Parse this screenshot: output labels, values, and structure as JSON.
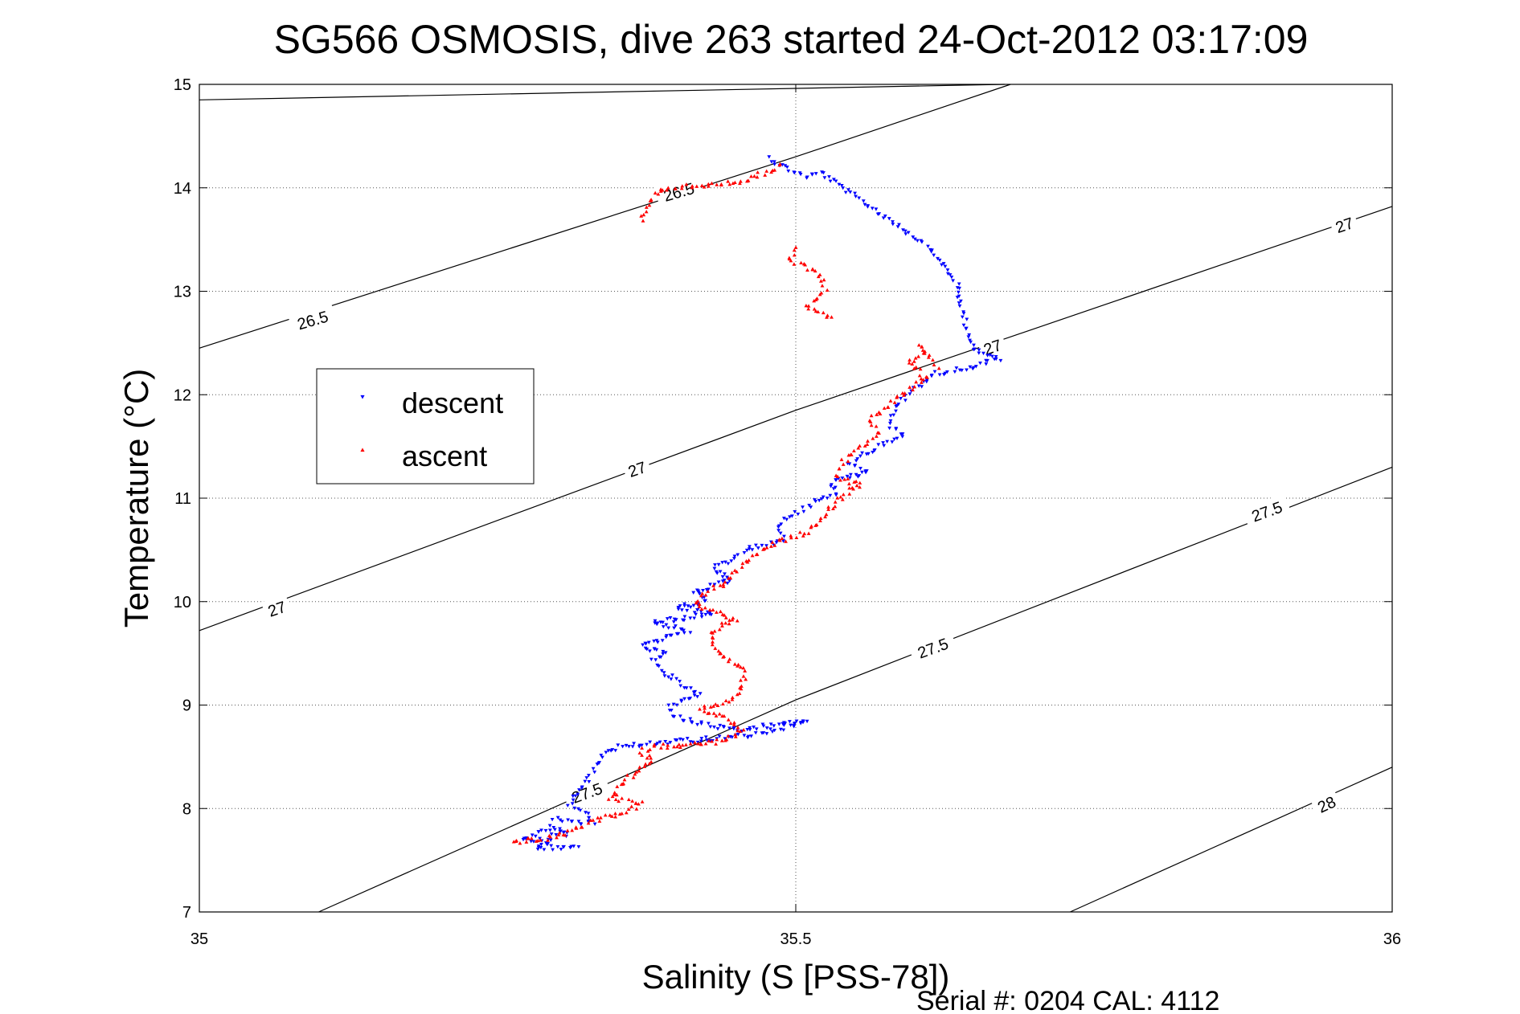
{
  "chart_data": {
    "type": "scatter",
    "title": "SG566 OSMOSIS, dive 263 started 24-Oct-2012 03:17:09",
    "xlabel": "Salinity (S [PSS-78])",
    "ylabel": "Temperature (°C)",
    "xlim": [
      35,
      36
    ],
    "ylim": [
      7,
      15
    ],
    "xticks": [
      "35",
      "35.5",
      "36"
    ],
    "yticks": [
      "7",
      "8",
      "9",
      "10",
      "11",
      "12",
      "13",
      "14",
      "15"
    ],
    "grid": "dotted",
    "legend_position": "upper-left",
    "footer": "Serial #: 0204  CAL: 4112",
    "contours": [
      {
        "level": "26.5",
        "points": [
          [
            35,
            14.85
          ],
          [
            35.675,
            15
          ]
        ]
      },
      {
        "level": "26.5",
        "points": [
          [
            35,
            12.45
          ],
          [
            35.5,
            14.3
          ],
          [
            35.68,
            15
          ]
        ]
      },
      {
        "level": "27",
        "points": [
          [
            35,
            9.72
          ],
          [
            35.5,
            11.85
          ],
          [
            36,
            13.82
          ]
        ]
      },
      {
        "level": "27.5",
        "points": [
          [
            35.1,
            7.0
          ],
          [
            35.5,
            9.05
          ],
          [
            36,
            11.3
          ]
        ]
      },
      {
        "level": "28",
        "points": [
          [
            35.73,
            7.0
          ],
          [
            36,
            8.4
          ]
        ]
      }
    ],
    "contour_labels": [
      {
        "text": "26.5",
        "x": 35.402,
        "y": 13.96,
        "angle": -16
      },
      {
        "text": "26.5",
        "x": 35.095,
        "y": 12.72,
        "angle": -16
      },
      {
        "text": "27",
        "x": 35.96,
        "y": 13.64,
        "angle": -19
      },
      {
        "text": "27",
        "x": 35.665,
        "y": 12.46,
        "angle": -19
      },
      {
        "text": "27",
        "x": 35.367,
        "y": 11.28,
        "angle": -19
      },
      {
        "text": "27",
        "x": 35.065,
        "y": 9.93,
        "angle": -19
      },
      {
        "text": "27.5",
        "x": 35.895,
        "y": 10.87,
        "angle": -20
      },
      {
        "text": "27.5",
        "x": 35.615,
        "y": 9.55,
        "angle": -20
      },
      {
        "text": "27.5",
        "x": 35.325,
        "y": 8.15,
        "angle": -20
      },
      {
        "text": "28",
        "x": 35.945,
        "y": 8.04,
        "angle": -25
      }
    ],
    "series": [
      {
        "name": "descent",
        "color": "#0000ff",
        "marker": "triangle-down",
        "path": [
          [
            35.477,
            14.29
          ],
          [
            35.49,
            14.2
          ],
          [
            35.51,
            14.1
          ],
          [
            35.52,
            14.15
          ],
          [
            35.58,
            13.68
          ],
          [
            35.61,
            13.45
          ],
          [
            35.62,
            13.3
          ],
          [
            35.635,
            13.08
          ],
          [
            35.64,
            12.78
          ],
          [
            35.65,
            12.42
          ],
          [
            35.67,
            12.35
          ],
          [
            35.64,
            12.25
          ],
          [
            35.615,
            12.2
          ],
          [
            35.6,
            12.05
          ],
          [
            35.585,
            11.9
          ],
          [
            35.578,
            11.72
          ],
          [
            35.59,
            11.62
          ],
          [
            35.575,
            11.52
          ],
          [
            35.555,
            11.42
          ],
          [
            35.545,
            11.32
          ],
          [
            35.56,
            11.25
          ],
          [
            35.53,
            11.15
          ],
          [
            35.535,
            11.05
          ],
          [
            35.515,
            10.95
          ],
          [
            35.5,
            10.85
          ],
          [
            35.485,
            10.75
          ],
          [
            35.49,
            10.6
          ],
          [
            35.46,
            10.5
          ],
          [
            35.445,
            10.4
          ],
          [
            35.43,
            10.32
          ],
          [
            35.445,
            10.2
          ],
          [
            35.415,
            10.1
          ],
          [
            35.425,
            10.0
          ],
          [
            35.4,
            9.95
          ],
          [
            35.43,
            9.88
          ],
          [
            35.38,
            9.8
          ],
          [
            35.41,
            9.72
          ],
          [
            35.39,
            9.65
          ],
          [
            35.37,
            9.57
          ],
          [
            35.39,
            9.5
          ],
          [
            35.38,
            9.42
          ],
          [
            35.39,
            9.3
          ],
          [
            35.405,
            9.2
          ],
          [
            35.42,
            9.1
          ],
          [
            35.395,
            9.0
          ],
          [
            35.4,
            8.88
          ],
          [
            35.42,
            8.82
          ],
          [
            35.45,
            8.75
          ],
          [
            35.49,
            8.82
          ],
          [
            35.5,
            8.82
          ],
          [
            35.51,
            8.85
          ],
          [
            35.47,
            8.72
          ],
          [
            35.44,
            8.68
          ],
          [
            35.4,
            8.65
          ],
          [
            35.37,
            8.62
          ],
          [
            35.355,
            8.6
          ],
          [
            35.34,
            8.55
          ],
          [
            35.33,
            8.35
          ],
          [
            35.31,
            8.05
          ],
          [
            35.325,
            7.95
          ],
          [
            35.33,
            7.85
          ],
          [
            35.3,
            7.9
          ],
          [
            35.295,
            7.85
          ],
          [
            35.31,
            7.75
          ],
          [
            35.285,
            7.78
          ],
          [
            35.27,
            7.7
          ],
          [
            35.295,
            7.68
          ],
          [
            35.282,
            7.62
          ],
          [
            35.31,
            7.62
          ],
          [
            35.318,
            7.63
          ]
        ]
      },
      {
        "name": "ascent",
        "color": "#ff0000",
        "marker": "triangle-up",
        "path": [
          [
            35.262,
            7.68
          ],
          [
            35.288,
            7.7
          ],
          [
            35.305,
            7.75
          ],
          [
            35.335,
            7.9
          ],
          [
            35.36,
            7.98
          ],
          [
            35.37,
            8.05
          ],
          [
            35.345,
            8.1
          ],
          [
            35.36,
            8.3
          ],
          [
            35.38,
            8.45
          ],
          [
            35.37,
            8.55
          ],
          [
            35.38,
            8.6
          ],
          [
            35.42,
            8.62
          ],
          [
            35.44,
            8.66
          ],
          [
            35.455,
            8.74
          ],
          [
            35.44,
            8.87
          ],
          [
            35.42,
            8.96
          ],
          [
            35.448,
            9.06
          ],
          [
            35.455,
            9.2
          ],
          [
            35.458,
            9.35
          ],
          [
            35.44,
            9.45
          ],
          [
            35.43,
            9.58
          ],
          [
            35.43,
            9.72
          ],
          [
            35.45,
            9.82
          ],
          [
            35.43,
            9.9
          ],
          [
            35.415,
            9.98
          ],
          [
            35.425,
            10.08
          ],
          [
            35.44,
            10.18
          ],
          [
            35.45,
            10.28
          ],
          [
            35.46,
            10.4
          ],
          [
            35.48,
            10.55
          ],
          [
            35.51,
            10.68
          ],
          [
            35.52,
            10.78
          ],
          [
            35.53,
            10.92
          ],
          [
            35.545,
            11.08
          ],
          [
            35.555,
            11.12
          ],
          [
            35.535,
            11.2
          ],
          [
            35.54,
            11.35
          ],
          [
            35.555,
            11.5
          ],
          [
            35.568,
            11.62
          ],
          [
            35.562,
            11.76
          ],
          [
            35.578,
            11.9
          ],
          [
            35.595,
            12.05
          ],
          [
            35.61,
            12.17
          ],
          [
            35.595,
            12.3
          ],
          [
            35.608,
            12.42
          ],
          [
            35.605,
            12.48
          ],
          [
            35.62,
            12.25
          ],
          [
            35.488,
            14.22
          ],
          [
            35.475,
            14.15
          ],
          [
            35.45,
            14.05
          ],
          [
            35.42,
            14.02
          ],
          [
            35.4,
            14.01
          ],
          [
            35.385,
            13.98
          ],
          [
            35.375,
            13.8
          ],
          [
            35.37,
            13.65
          ],
          [
            35.5,
            13.42
          ],
          [
            35.495,
            13.3
          ],
          [
            35.52,
            13.18
          ],
          [
            35.525,
            13.02
          ],
          [
            35.515,
            12.9
          ],
          [
            35.51,
            12.85
          ],
          [
            35.53,
            12.75
          ]
        ]
      }
    ]
  }
}
